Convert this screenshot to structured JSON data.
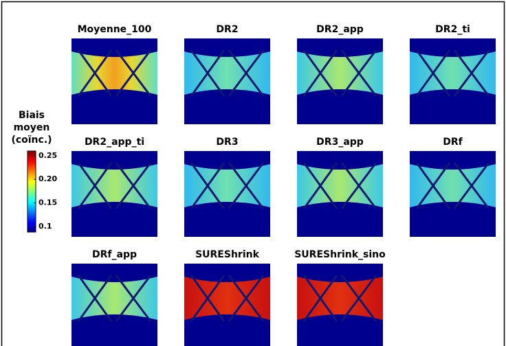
{
  "panels": [
    {
      "title": "Moyenne_100"
    },
    {
      "title": "DR2"
    },
    {
      "title": "DR2_app"
    },
    {
      "title": "DR2_ti"
    },
    {
      "title": "DR2_app_ti"
    },
    {
      "title": "DR3"
    },
    {
      "title": "DR3_app"
    },
    {
      "title": "DRf"
    },
    {
      "title": "DRf_app"
    },
    {
      "title": "SUREShrink"
    },
    {
      "title": "SUREShrink_sino"
    }
  ],
  "colorbar": {
    "label": [
      "Biais",
      "moyen",
      "(coïnc.)"
    ],
    "lim": [
      0.088,
      0.26
    ],
    "ticks": [
      {
        "value": 0.25,
        "label": "0.25"
      },
      {
        "value": 0.2,
        "label": "0.20"
      },
      {
        "value": 0.15,
        "label": "0.15"
      },
      {
        "value": 0.1,
        "label": "0.1"
      }
    ]
  }
}
